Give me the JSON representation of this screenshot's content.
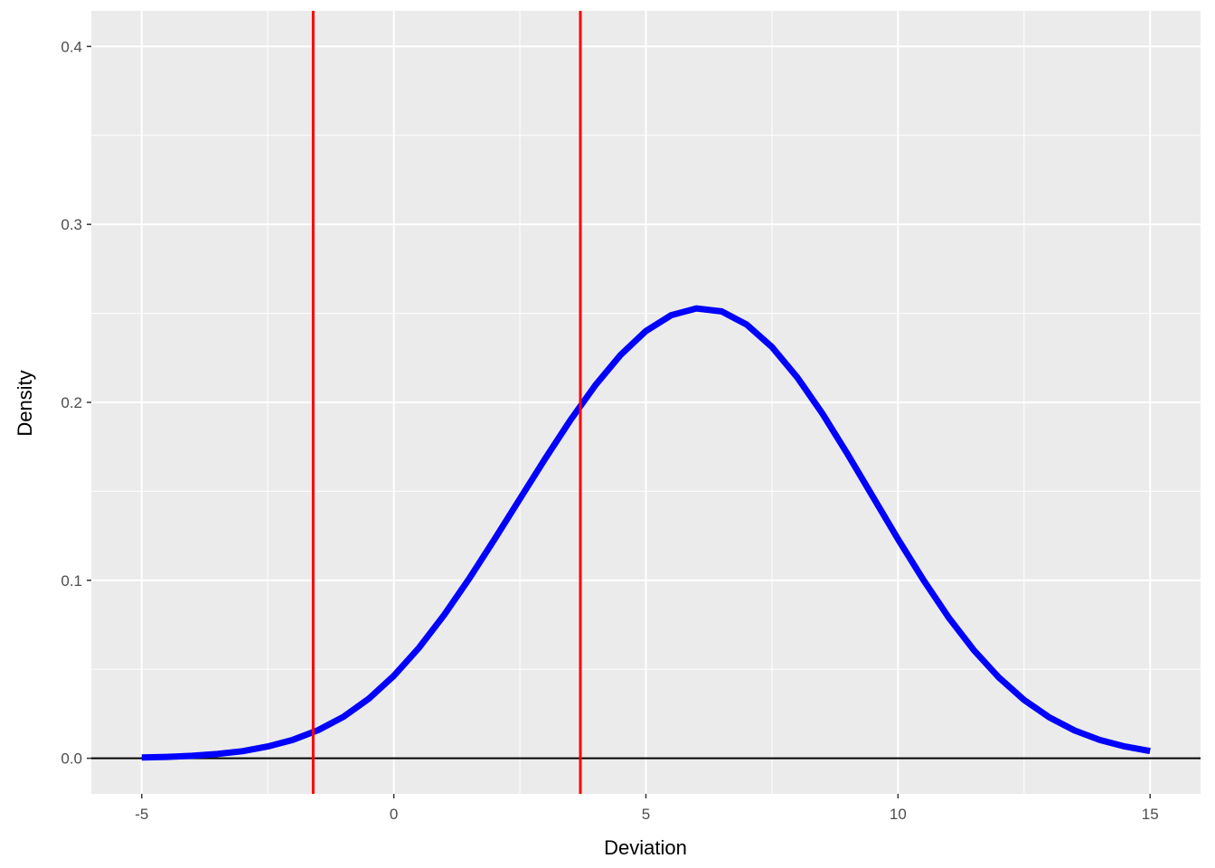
{
  "chart_data": {
    "type": "line",
    "xlabel": "Deviation",
    "ylabel": "Density",
    "xlim": [
      -6,
      16
    ],
    "ylim": [
      -0.02,
      0.42
    ],
    "x_ticks": [
      -5,
      0,
      5,
      10,
      15
    ],
    "x_tick_labels": [
      "-5",
      "0",
      "5",
      "10",
      "15"
    ],
    "y_ticks": [
      0.0,
      0.1,
      0.2,
      0.3,
      0.4
    ],
    "y_tick_labels": [
      "0.0",
      "0.1",
      "0.2",
      "0.3",
      "0.4"
    ],
    "grid": true,
    "series": [
      {
        "color": "#0000ff",
        "x": [
          -5,
          -4.5,
          -4,
          -3.5,
          -3,
          -2.5,
          -2,
          -1.5,
          -1,
          -0.5,
          0,
          0.5,
          1,
          1.5,
          2,
          2.5,
          3,
          3.5,
          4,
          4.5,
          5,
          5.5,
          6,
          6.5,
          7,
          7.5,
          8,
          8.5,
          9,
          9.5,
          10,
          10.5,
          11,
          11.5,
          12,
          12.5,
          13,
          13.5,
          14,
          14.5,
          15
        ],
        "y": [
          0.0004,
          0.0008,
          0.0014,
          0.0024,
          0.004,
          0.0066,
          0.0104,
          0.0158,
          0.0233,
          0.0334,
          0.0463,
          0.0621,
          0.0806,
          0.1012,
          0.1232,
          0.1458,
          0.1683,
          0.1899,
          0.2097,
          0.2267,
          0.2401,
          0.249,
          0.2528,
          0.2511,
          0.2437,
          0.2311,
          0.2141,
          0.1937,
          0.1709,
          0.147,
          0.1231,
          0.1003,
          0.0793,
          0.0609,
          0.0454,
          0.0328,
          0.023,
          0.0156,
          0.0103,
          0.0066,
          0.0041
        ]
      }
    ],
    "hline": {
      "y": 0,
      "color": "#000000"
    },
    "vlines": [
      {
        "x": -1.6,
        "color": "#ff0000"
      },
      {
        "x": 3.7,
        "color": "#ff0000"
      }
    ],
    "colors": {
      "panel": "#ebebeb",
      "grid": "#ffffff"
    }
  }
}
